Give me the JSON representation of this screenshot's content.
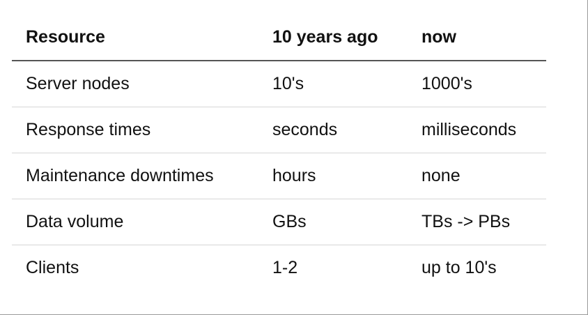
{
  "table": {
    "headers": [
      "Resource",
      "10 years ago",
      "now"
    ],
    "rows": [
      [
        "Server nodes",
        "10's",
        "1000's"
      ],
      [
        "Response times",
        "seconds",
        "milliseconds"
      ],
      [
        "Maintenance downtimes",
        "hours",
        "none"
      ],
      [
        "Data volume",
        "GBs",
        "TBs -> PBs"
      ],
      [
        "Clients",
        "1-2",
        "up to 10's"
      ]
    ]
  }
}
